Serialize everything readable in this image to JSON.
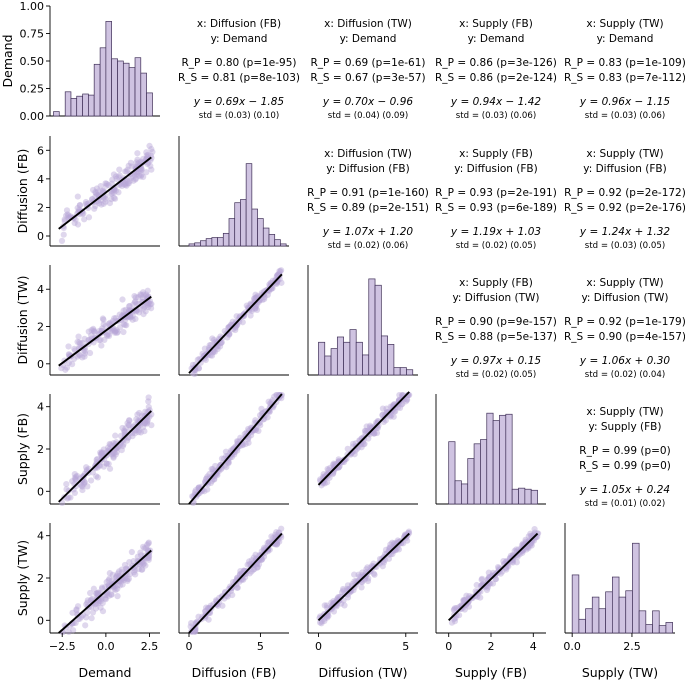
{
  "chart_data": {
    "type": "pairplot",
    "variables": [
      "Demand",
      "Diffusion (FB)",
      "Diffusion (TW)",
      "Supply (FB)",
      "Supply (TW)"
    ],
    "colors": {
      "hist_fill": "#cfc3e1",
      "hist_edge": "#3f2f57",
      "scatter": "#b7a6d6",
      "fit_line": "#000000"
    },
    "axes": [
      {
        "range": [
          -3.2,
          3.1
        ],
        "ticks": [
          -2.5,
          0.0,
          2.5
        ],
        "tick_labels": [
          "−2.5",
          "0.0",
          "2.5"
        ]
      },
      {
        "range": [
          -0.7,
          7.0
        ],
        "ticks": [
          0,
          5
        ],
        "tick_labels": [
          "0",
          "5"
        ]
      },
      {
        "range": [
          -0.6,
          5.7
        ],
        "ticks": [
          0,
          5
        ],
        "tick_labels": [
          "0",
          "5"
        ]
      },
      {
        "range": [
          -0.6,
          4.6
        ],
        "ticks": [
          0,
          2,
          4
        ],
        "tick_labels": [
          "0",
          "2",
          "4"
        ]
      },
      {
        "range": [
          -0.3,
          4.3
        ],
        "ticks": [
          0.0,
          2.5
        ],
        "tick_labels": [
          "0.0",
          "2.5"
        ]
      }
    ],
    "row_axes": [
      {
        "range": [
          0,
          1.0
        ],
        "ticks": [
          0.0,
          0.25,
          0.5,
          0.75,
          1.0
        ],
        "tick_labels": [
          "0.00",
          "0.25",
          "0.50",
          "0.75",
          "1.00"
        ]
      },
      {
        "range": [
          -0.7,
          7.0
        ],
        "ticks": [
          0,
          2,
          4,
          6
        ],
        "tick_labels": [
          "0",
          "2",
          "4",
          "6"
        ]
      },
      {
        "range": [
          -0.6,
          5.3
        ],
        "ticks": [
          0,
          2,
          4
        ],
        "tick_labels": [
          "0",
          "2",
          "4"
        ]
      },
      {
        "range": [
          -0.6,
          4.6
        ],
        "ticks": [
          0,
          2,
          4
        ],
        "tick_labels": [
          "0",
          "2",
          "4"
        ]
      },
      {
        "range": [
          -0.6,
          4.6
        ],
        "ticks": [
          0,
          2,
          4
        ],
        "tick_labels": [
          "0",
          "2",
          "4"
        ]
      }
    ],
    "histograms": [
      {
        "bins": [
          -3.0,
          -2.67,
          -2.33,
          -2.0,
          -1.67,
          -1.33,
          -1.0,
          -0.67,
          -0.33,
          0.0,
          0.33,
          0.67,
          1.0,
          1.33,
          1.67,
          2.0,
          2.33,
          2.67
        ],
        "heights": [
          0.04,
          0.0,
          0.22,
          0.16,
          0.18,
          0.2,
          0.19,
          0.47,
          0.62,
          0.86,
          0.52,
          0.5,
          0.48,
          0.44,
          0.53,
          0.39,
          0.21
        ]
      },
      {
        "bins": [
          0.0,
          0.4,
          0.8,
          1.2,
          1.6,
          2.0,
          2.4,
          2.8,
          3.2,
          3.6,
          4.0,
          4.4,
          4.8,
          5.2,
          5.6,
          6.0,
          6.4,
          6.8
        ],
        "heights": [
          0.02,
          0.03,
          0.05,
          0.07,
          0.08,
          0.08,
          0.12,
          0.26,
          0.41,
          0.44,
          0.78,
          0.35,
          0.26,
          0.17,
          0.11,
          0.06,
          0.02
        ]
      },
      {
        "bins": [
          0.0,
          0.36,
          0.72,
          1.08,
          1.44,
          1.8,
          2.16,
          2.52,
          2.88,
          3.24,
          3.6,
          3.96,
          4.32,
          4.68,
          5.04,
          5.4
        ],
        "heights": [
          0.31,
          0.18,
          0.25,
          0.36,
          0.31,
          0.43,
          0.31,
          0.19,
          0.91,
          0.85,
          0.37,
          0.29,
          0.07,
          0.07,
          0.05
        ]
      },
      {
        "bins": [
          0.0,
          0.3,
          0.6,
          0.9,
          1.2,
          1.5,
          1.8,
          2.1,
          2.4,
          2.7,
          3.0,
          3.3,
          3.6,
          3.9,
          4.2
        ],
        "heights": [
          0.59,
          0.22,
          0.19,
          0.43,
          0.57,
          0.61,
          0.86,
          0.79,
          0.84,
          0.85,
          0.14,
          0.15,
          0.14,
          0.13
        ]
      },
      {
        "bins": [
          0.0,
          0.28,
          0.56,
          0.84,
          1.12,
          1.4,
          1.68,
          1.96,
          2.24,
          2.52,
          2.8,
          3.08,
          3.36,
          3.64,
          3.92,
          4.2
        ],
        "heights": [
          0.55,
          0.13,
          0.23,
          0.34,
          0.23,
          0.39,
          0.53,
          0.34,
          0.4,
          0.85,
          0.21,
          0.08,
          0.21,
          0.07,
          0.1
        ]
      }
    ],
    "fits": [
      {
        "x": "Diffusion (FB)",
        "y": "Demand",
        "rp": "R_P = 0.80 (p=1e-95)",
        "rs": "R_S = 0.81 (p=8e-103)",
        "eq": "y = 0.69x − 1.85",
        "std": "std = (0.03) (0.10)",
        "slope": 0.69,
        "intercept": -1.85
      },
      {
        "x": "Diffusion (TW)",
        "y": "Demand",
        "rp": "R_P = 0.69 (p=1e-61)",
        "rs": "R_S = 0.67 (p=3e-57)",
        "eq": "y = 0.70x − 0.96",
        "std": "std = (0.04) (0.09)",
        "slope": 0.7,
        "intercept": -0.96
      },
      {
        "x": "Supply (FB)",
        "y": "Demand",
        "rp": "R_P = 0.86 (p=3e-126)",
        "rs": "R_S = 0.86 (p=2e-124)",
        "eq": "y = 0.94x − 1.42",
        "std": "std = (0.03) (0.06)",
        "slope": 0.94,
        "intercept": -1.42
      },
      {
        "x": "Supply (TW)",
        "y": "Demand",
        "rp": "R_P = 0.83 (p=1e-109)",
        "rs": "R_S = 0.83 (p=7e-112)",
        "eq": "y = 0.96x − 1.15",
        "std": "std = (0.03) (0.06)",
        "slope": 0.96,
        "intercept": -1.15
      },
      {
        "x": "Diffusion (TW)",
        "y": "Diffusion (FB)",
        "rp": "R_P = 0.91 (p=1e-160)",
        "rs": "R_S = 0.89 (p=2e-151)",
        "eq": "y = 1.07x + 1.20",
        "std": "std = (0.02) (0.06)",
        "slope": 1.07,
        "intercept": 1.2
      },
      {
        "x": "Supply (FB)",
        "y": "Diffusion (FB)",
        "rp": "R_P = 0.93 (p=2e-191)",
        "rs": "R_S = 0.93 (p=6e-189)",
        "eq": "y = 1.19x + 1.03",
        "std": "std = (0.02) (0.05)",
        "slope": 1.19,
        "intercept": 1.03
      },
      {
        "x": "Supply (TW)",
        "y": "Diffusion (FB)",
        "rp": "R_P = 0.92 (p=2e-172)",
        "rs": "R_S = 0.92 (p=2e-176)",
        "eq": "y = 1.24x + 1.32",
        "std": "std = (0.03) (0.05)",
        "slope": 1.24,
        "intercept": 1.32
      },
      {
        "x": "Supply (FB)",
        "y": "Diffusion (TW)",
        "rp": "R_P = 0.90 (p=9e-157)",
        "rs": "R_S = 0.88 (p=5e-137)",
        "eq": "y = 0.97x + 0.15",
        "std": "std = (0.02) (0.05)",
        "slope": 0.97,
        "intercept": 0.15
      },
      {
        "x": "Supply (TW)",
        "y": "Diffusion (TW)",
        "rp": "R_P = 0.92 (p=1e-179)",
        "rs": "R_S = 0.90 (p=4e-157)",
        "eq": "y = 1.06x + 0.30",
        "std": "std = (0.02) (0.04)",
        "slope": 1.06,
        "intercept": 0.3
      },
      {
        "x": "Supply (TW)",
        "y": "Supply (FB)",
        "rp": "R_P = 0.99 (p=0)",
        "rs": "R_S = 0.99 (p=0)",
        "eq": "y = 1.05x + 0.24",
        "std": "std = (0.01) (0.02)",
        "slope": 1.05,
        "intercept": 0.24
      }
    ],
    "scatter_lines": [
      {
        "row": "Diffusion (FB)",
        "col": "Demand",
        "p1": [
          -2.7,
          0.5
        ],
        "p2": [
          2.6,
          5.5
        ]
      },
      {
        "row": "Diffusion (TW)",
        "col": "Demand",
        "p1": [
          -2.7,
          -0.1
        ],
        "p2": [
          2.6,
          3.6
        ]
      },
      {
        "row": "Diffusion (TW)",
        "col": "Diffusion (FB)",
        "p1": [
          0.0,
          -0.5
        ],
        "p2": [
          6.5,
          4.8
        ]
      },
      {
        "row": "Supply (FB)",
        "col": "Demand",
        "p1": [
          -2.7,
          -0.5
        ],
        "p2": [
          2.6,
          3.8
        ]
      },
      {
        "row": "Supply (FB)",
        "col": "Diffusion (FB)",
        "p1": [
          0.0,
          -0.6
        ],
        "p2": [
          6.5,
          4.6
        ]
      },
      {
        "row": "Supply (FB)",
        "col": "Diffusion (TW)",
        "p1": [
          0.0,
          0.3
        ],
        "p2": [
          5.2,
          4.7
        ]
      },
      {
        "row": "Supply (TW)",
        "col": "Demand",
        "p1": [
          -2.7,
          -0.6
        ],
        "p2": [
          2.6,
          3.3
        ]
      },
      {
        "row": "Supply (TW)",
        "col": "Diffusion (FB)",
        "p1": [
          0.0,
          -0.6
        ],
        "p2": [
          6.5,
          4.1
        ]
      },
      {
        "row": "Supply (TW)",
        "col": "Diffusion (TW)",
        "p1": [
          0.0,
          0.0
        ],
        "p2": [
          5.2,
          4.1
        ]
      },
      {
        "row": "Supply (TW)",
        "col": "Supply (FB)",
        "p1": [
          0.0,
          0.0
        ],
        "p2": [
          4.2,
          4.1
        ]
      }
    ]
  }
}
